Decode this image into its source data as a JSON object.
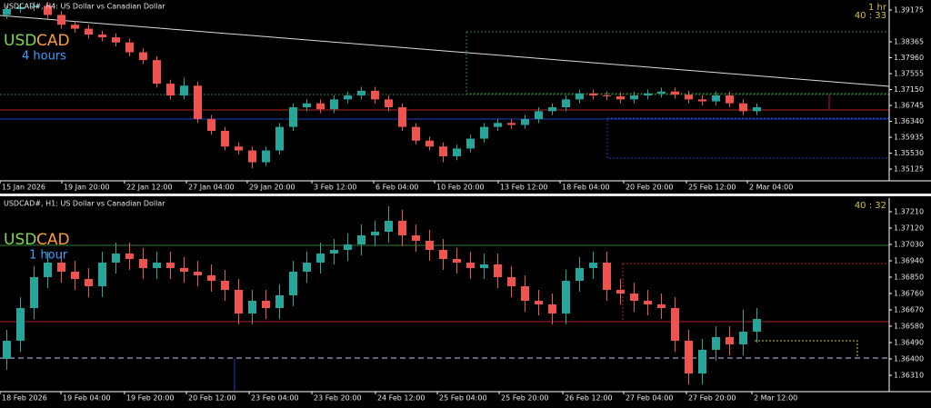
{
  "chart_data": [
    {
      "type": "candlestick",
      "title": "USDCAD#, H4: US Dollar vs Canadian Dollar",
      "symbol_base": "USD",
      "symbol_quote": "CAD",
      "timeframe_label": "4 hours",
      "period": "1 hr",
      "timer": "40 : 33",
      "up_color": "#26a69a",
      "down_color": "#ef5350",
      "open": [
        1.3905,
        1.392,
        1.3925,
        1.3928,
        1.3905,
        1.388,
        1.387,
        1.3855,
        1.3848,
        1.3835,
        1.381,
        1.379,
        1.373,
        1.37,
        1.3725,
        1.364,
        1.361,
        1.357,
        1.356,
        1.353,
        1.356,
        1.362,
        1.367,
        1.368,
        1.3665,
        1.369,
        1.37,
        1.3712,
        1.369,
        1.367,
        1.362,
        1.3585,
        1.357,
        1.3545,
        1.3565,
        1.359,
        1.362,
        1.363,
        1.3625,
        1.364,
        1.366,
        1.367,
        1.369,
        1.3705,
        1.37,
        1.3698,
        1.369,
        1.37,
        1.3705,
        1.371,
        1.3702,
        1.369,
        1.3685,
        1.37,
        1.368,
        1.366
      ],
      "high": [
        1.393,
        1.3935,
        1.3938,
        1.3938,
        1.3915,
        1.389,
        1.388,
        1.3865,
        1.3858,
        1.3845,
        1.382,
        1.38,
        1.374,
        1.3745,
        1.3735,
        1.365,
        1.362,
        1.358,
        1.357,
        1.357,
        1.363,
        1.368,
        1.369,
        1.369,
        1.37,
        1.371,
        1.3722,
        1.3722,
        1.37,
        1.368,
        1.363,
        1.3595,
        1.358,
        1.3575,
        1.36,
        1.363,
        1.364,
        1.364,
        1.365,
        1.367,
        1.368,
        1.37,
        1.3715,
        1.3715,
        1.371,
        1.3708,
        1.371,
        1.3715,
        1.372,
        1.372,
        1.3712,
        1.37,
        1.371,
        1.371,
        1.369,
        1.368
      ],
      "low": [
        1.3895,
        1.391,
        1.3915,
        1.3895,
        1.387,
        1.386,
        1.3845,
        1.3838,
        1.3825,
        1.38,
        1.378,
        1.372,
        1.369,
        1.369,
        1.363,
        1.36,
        1.356,
        1.355,
        1.3515,
        1.352,
        1.355,
        1.361,
        1.366,
        1.3655,
        1.3655,
        1.368,
        1.369,
        1.368,
        1.366,
        1.361,
        1.3575,
        1.356,
        1.353,
        1.3535,
        1.3555,
        1.358,
        1.361,
        1.3615,
        1.3615,
        1.363,
        1.365,
        1.366,
        1.368,
        1.369,
        1.3688,
        1.368,
        1.368,
        1.369,
        1.3695,
        1.3692,
        1.368,
        1.3675,
        1.3675,
        1.367,
        1.365,
        1.365
      ],
      "close": [
        1.392,
        1.3925,
        1.3928,
        1.3905,
        1.388,
        1.387,
        1.3855,
        1.3848,
        1.3835,
        1.381,
        1.379,
        1.373,
        1.37,
        1.3725,
        1.364,
        1.361,
        1.357,
        1.356,
        1.353,
        1.356,
        1.362,
        1.367,
        1.368,
        1.3665,
        1.369,
        1.37,
        1.3712,
        1.369,
        1.367,
        1.362,
        1.3585,
        1.357,
        1.3545,
        1.3565,
        1.359,
        1.362,
        1.363,
        1.3625,
        1.364,
        1.366,
        1.367,
        1.369,
        1.3705,
        1.37,
        1.3698,
        1.369,
        1.37,
        1.3705,
        1.371,
        1.3702,
        1.369,
        1.3685,
        1.37,
        1.368,
        1.366,
        1.367
      ],
      "xlim": [
        0,
        65.2
      ],
      "xticks": [
        {
          "value": 0,
          "label": "15 Jan 2026"
        },
        {
          "value": 4.53,
          "label": "19 Jan 20:00"
        },
        {
          "value": 9.13,
          "label": "22 Jan 12:00"
        },
        {
          "value": 13.67,
          "label": "27 Jan 04:00"
        },
        {
          "value": 18.13,
          "label": "29 Jan 20:00"
        },
        {
          "value": 22.87,
          "label": "3 Feb 12:00"
        },
        {
          "value": 27.4,
          "label": "6 Feb 04:00"
        },
        {
          "value": 31.87,
          "label": "10 Feb 20:00"
        },
        {
          "value": 36.53,
          "label": "13 Feb 12:00"
        },
        {
          "value": 41.07,
          "label": "18 Feb 04:00"
        },
        {
          "value": 45.73,
          "label": "20 Feb 20:00"
        },
        {
          "value": 50.33,
          "label": "25 Feb 12:00"
        },
        {
          "value": 54.8,
          "label": "2 Mar 04:00"
        }
      ],
      "ylim": [
        1.3485,
        1.3943
      ],
      "yticks": [
        1.39175,
        1.38365,
        {
          "value": 1.3796,
          "label": "1.37960"
        },
        1.37555,
        {
          "value": 1.3715,
          "label": "1.37150"
        },
        1.36745,
        {
          "value": 1.3634,
          "label": "1.36340"
        },
        1.35935,
        {
          "value": 1.3553,
          "label": "1.35530"
        },
        1.35125
      ]
    },
    {
      "type": "candlestick",
      "title": "USDCAD#, H1: US Dollar vs Canadian Dollar",
      "symbol_base": "USD",
      "symbol_quote": "CAD",
      "timeframe_label": "1 hour",
      "timer": "40 : 32",
      "up_color": "#26a69a",
      "down_color": "#ef5350",
      "open": [
        1.364,
        1.365,
        1.3668,
        1.3685,
        1.3693,
        1.3688,
        1.3684,
        1.368,
        1.3693,
        1.3698,
        1.3695,
        1.369,
        1.3693,
        1.369,
        1.3688,
        1.3686,
        1.3683,
        1.3678,
        1.3665,
        1.3672,
        1.3668,
        1.3675,
        1.3688,
        1.3693,
        1.3698,
        1.37,
        1.3703,
        1.3708,
        1.371,
        1.3716,
        1.3708,
        1.3705,
        1.37,
        1.3695,
        1.3693,
        1.369,
        1.3692,
        1.3685,
        1.368,
        1.3672,
        1.367,
        1.3665,
        1.3683,
        1.369,
        1.3693,
        1.3678,
        1.3676,
        1.3672,
        1.367,
        1.3668,
        1.365,
        1.3632,
        1.3645,
        1.3652,
        1.3648,
        1.3655
      ],
      "high": [
        1.3656,
        1.3674,
        1.3691,
        1.3699,
        1.3699,
        1.3694,
        1.369,
        1.3699,
        1.3704,
        1.3704,
        1.3701,
        1.3699,
        1.3699,
        1.3696,
        1.3694,
        1.3692,
        1.3689,
        1.3684,
        1.3678,
        1.3678,
        1.3681,
        1.3694,
        1.3699,
        1.3704,
        1.3706,
        1.3709,
        1.3714,
        1.3716,
        1.3724,
        1.3722,
        1.3714,
        1.3711,
        1.3706,
        1.3701,
        1.3699,
        1.3698,
        1.3698,
        1.3691,
        1.3686,
        1.3678,
        1.3676,
        1.3689,
        1.3696,
        1.3699,
        1.3699,
        1.3684,
        1.3682,
        1.3678,
        1.3676,
        1.3674,
        1.3656,
        1.3651,
        1.3658,
        1.3658,
        1.3667,
        1.3668
      ],
      "low": [
        1.3634,
        1.3644,
        1.3662,
        1.3679,
        1.3682,
        1.3678,
        1.3674,
        1.3674,
        1.3687,
        1.3689,
        1.3684,
        1.3684,
        1.3684,
        1.3682,
        1.368,
        1.3677,
        1.3672,
        1.3659,
        1.3659,
        1.3662,
        1.3662,
        1.3669,
        1.3682,
        1.3687,
        1.3692,
        1.3694,
        1.3697,
        1.3702,
        1.3704,
        1.3702,
        1.3699,
        1.3694,
        1.3689,
        1.3687,
        1.3684,
        1.3684,
        1.3679,
        1.3674,
        1.3666,
        1.3664,
        1.3659,
        1.3659,
        1.3677,
        1.3684,
        1.3672,
        1.367,
        1.3666,
        1.3664,
        1.3662,
        1.3644,
        1.3626,
        1.3626,
        1.3639,
        1.3642,
        1.3642,
        1.3649
      ],
      "close": [
        1.365,
        1.3668,
        1.3685,
        1.3693,
        1.3688,
        1.3684,
        1.368,
        1.3693,
        1.3698,
        1.3695,
        1.369,
        1.3693,
        1.369,
        1.3688,
        1.3686,
        1.3683,
        1.3678,
        1.3665,
        1.3672,
        1.3668,
        1.3675,
        1.3688,
        1.3693,
        1.3698,
        1.37,
        1.3703,
        1.3708,
        1.371,
        1.3716,
        1.3708,
        1.3705,
        1.37,
        1.3695,
        1.3693,
        1.369,
        1.3692,
        1.3685,
        1.368,
        1.3672,
        1.367,
        1.3665,
        1.3683,
        1.369,
        1.3693,
        1.3678,
        1.3676,
        1.3672,
        1.367,
        1.3668,
        1.365,
        1.3632,
        1.3645,
        1.3652,
        1.3648,
        1.3655,
        1.3662
      ],
      "xlim": [
        0,
        65.2
      ],
      "xticks": [
        {
          "value": 0,
          "label": "18 Feb 2026"
        },
        {
          "value": 4.47,
          "label": "19 Feb 04:00"
        },
        {
          "value": 9.13,
          "label": "19 Feb 20:00"
        },
        {
          "value": 13.67,
          "label": "20 Feb 12:00"
        },
        {
          "value": 18.27,
          "label": "23 Feb 04:00"
        },
        {
          "value": 22.87,
          "label": "23 Feb 20:00"
        },
        {
          "value": 27.53,
          "label": "24 Feb 12:00"
        },
        {
          "value": 32.07,
          "label": "25 Feb 04:00"
        },
        {
          "value": 36.6,
          "label": "25 Feb 20:00"
        },
        {
          "value": 41.27,
          "label": "26 Feb 12:00"
        },
        {
          "value": 45.73,
          "label": "27 Feb 04:00"
        },
        {
          "value": 50.33,
          "label": "27 Feb 20:00"
        },
        {
          "value": 55.13,
          "label": "2 Mar 12:00"
        }
      ],
      "ylim": [
        1.36225,
        1.37285
      ],
      "yticks": [
        {
          "value": 1.3721,
          "label": "1.37210"
        },
        {
          "value": 1.3712,
          "label": "1.37120"
        },
        {
          "value": 1.3703,
          "label": "1.37030"
        },
        {
          "value": 1.3694,
          "label": "1.36940"
        },
        {
          "value": 1.3685,
          "label": "1.36850"
        },
        {
          "value": 1.3676,
          "label": "1.36760"
        },
        {
          "value": 1.3667,
          "label": "1.36670"
        },
        {
          "value": 1.3658,
          "label": "1.36580"
        },
        {
          "value": 1.3649,
          "label": "1.36490"
        },
        {
          "value": 1.364,
          "label": "1.36400"
        },
        {
          "value": 1.3631,
          "label": "1.36310"
        }
      ]
    }
  ]
}
